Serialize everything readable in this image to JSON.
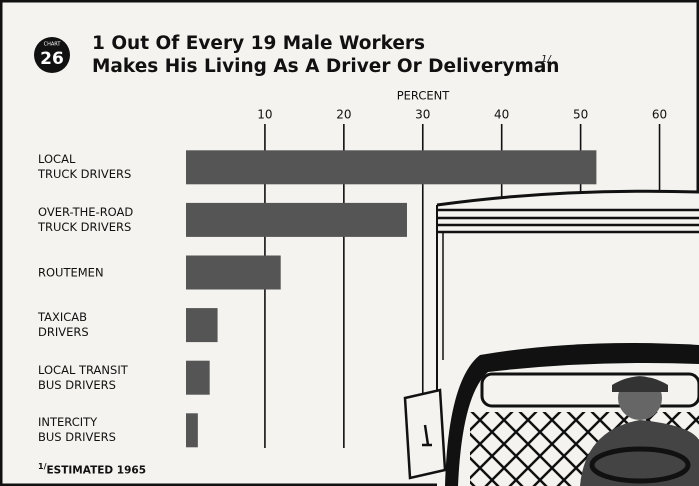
{
  "chart_data": {
    "type": "bar",
    "orientation": "horizontal",
    "chart_label": "CHART",
    "chart_number": "26",
    "title": "1 Out Of Every 19 Male Workers\nMakes His Living As A Driver Or Deliveryman",
    "title_footnote_marker": "1/",
    "xlabel": "PERCENT",
    "categories": [
      "LOCAL\nTRUCK DRIVERS",
      "OVER-THE-ROAD\nTRUCK DRIVERS",
      "ROUTEMEN",
      "TAXICAB\nDRIVERS",
      "LOCAL TRANSIT\nBUS DRIVERS",
      "INTERCITY\nBUS DRIVERS"
    ],
    "values": [
      52,
      28,
      12,
      4,
      3,
      1.5
    ],
    "color": "#555555",
    "xlim": [
      0,
      65
    ],
    "xticks": [
      10,
      20,
      30,
      40,
      50,
      60
    ],
    "grid": true,
    "footnote_marker": "1/",
    "footnote": "ESTIMATED 1965"
  }
}
